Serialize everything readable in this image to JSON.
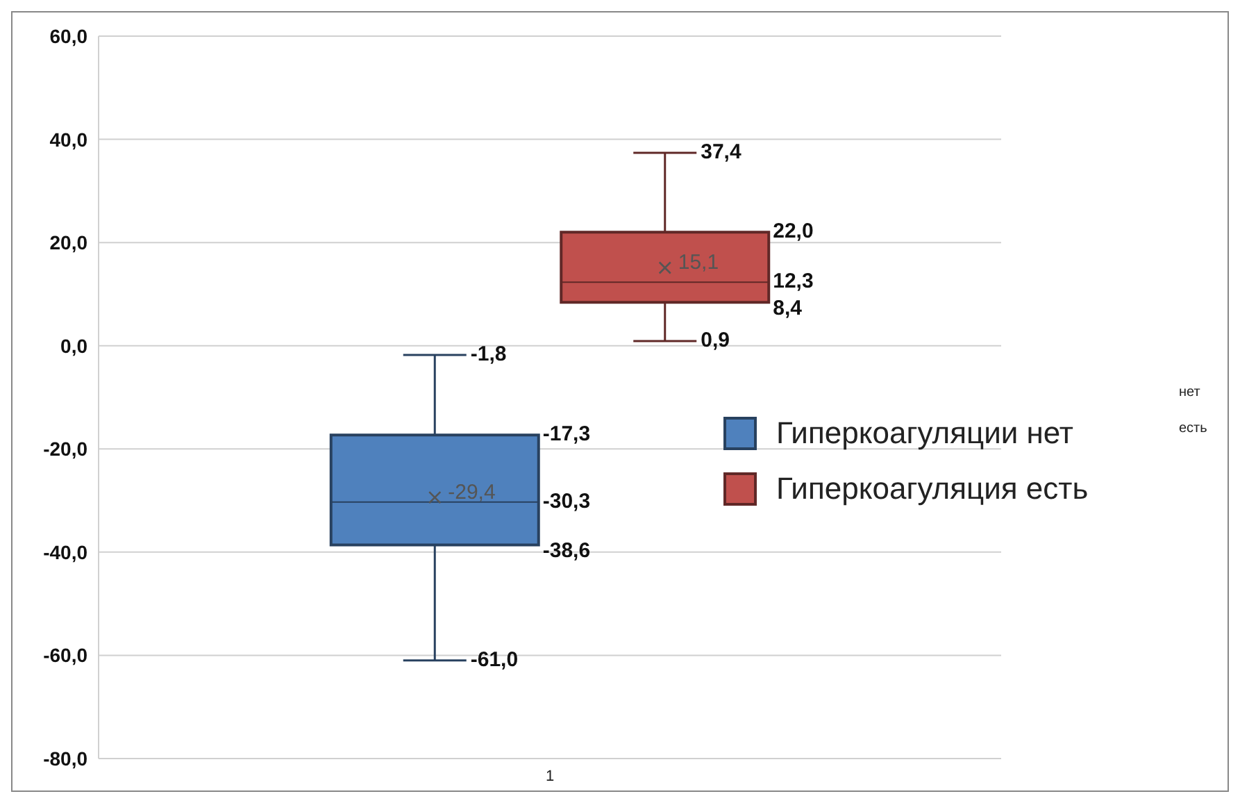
{
  "chart_data": {
    "type": "box",
    "categories": [
      "1"
    ],
    "series": [
      {
        "name": "Гиперкоагуляции нет",
        "color": "#4f81bd",
        "boxes": [
          {
            "low": -61.0,
            "q1": -38.6,
            "median": -30.3,
            "q3": -17.3,
            "high": -1.8,
            "mean": -29.4
          }
        ]
      },
      {
        "name": "Гиперкоагуляция есть",
        "color": "#c0504d",
        "boxes": [
          {
            "low": 0.9,
            "q1": 8.4,
            "median": 12.3,
            "q3": 22.0,
            "high": 37.4,
            "mean": 15.1
          }
        ]
      }
    ],
    "ylim": [
      -80,
      60
    ],
    "yticks": [
      {
        "value": -80,
        "label": "-80,0"
      },
      {
        "value": -60,
        "label": "-60,0"
      },
      {
        "value": -40,
        "label": "-40,0"
      },
      {
        "value": -20,
        "label": "-20,0"
      },
      {
        "value": 0,
        "label": "0,0"
      },
      {
        "value": 20,
        "label": "20,0"
      },
      {
        "value": 40,
        "label": "40,0"
      },
      {
        "value": 60,
        "label": "60,0"
      }
    ],
    "grid": "y",
    "legend": "right",
    "annotations": [
      "-1,8",
      "-17,3",
      "-29,4",
      "-30,3",
      "-38,6",
      "-61,0",
      "37,4",
      "22,0",
      "15,1",
      "12,3",
      "8,4",
      "0,9",
      "нет",
      "есть"
    ]
  }
}
